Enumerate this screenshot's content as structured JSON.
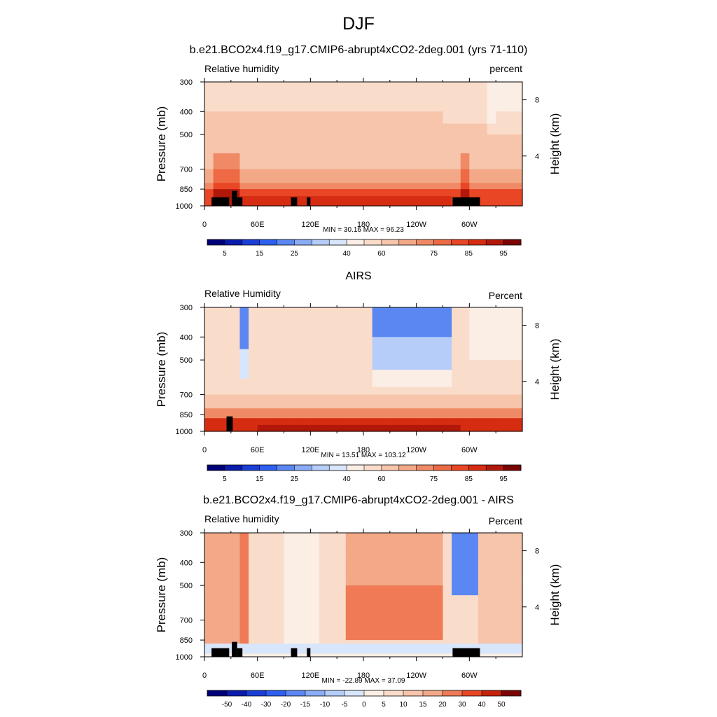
{
  "suptitle": "DJF",
  "chart_data": [
    {
      "type": "heatmap",
      "title": "b.e21.BCO2x4.f19_g17.CMIP6-abrupt4xCO2-2deg.001 (yrs 71-110)",
      "left_label": "Relative humidity",
      "right_label": "percent",
      "ylabel": "Pressure (mb)",
      "ylabel_right": "Height (km)",
      "yticks": [
        300,
        400,
        500,
        700,
        850,
        1000
      ],
      "yticks_right": [
        8,
        4
      ],
      "xticks": [
        "0",
        "60E",
        "120E",
        "180",
        "120W",
        "60W"
      ],
      "xlim": [
        0,
        360
      ],
      "ylim": [
        1000,
        300
      ],
      "min": "30.16",
      "max": "96.23",
      "stats": "MIN =  30.16  MAX =  96.23",
      "colorbar_levels": [
        0,
        5,
        10,
        15,
        20,
        25,
        30,
        35,
        40,
        50,
        60,
        65,
        70,
        75,
        80,
        85,
        90,
        95,
        100
      ],
      "colorbar_labels": [
        "5",
        "15",
        "25",
        "40",
        "60",
        "75",
        "85",
        "95"
      ],
      "colors": [
        "#00007a",
        "#0a1cab",
        "#1b3ed6",
        "#2d60f0",
        "#5b87f2",
        "#8aacf5",
        "#b5cdf8",
        "#d8e6fb",
        "#fbeee4",
        "#fadccb",
        "#f6c5ab",
        "#f3a988",
        "#f08a66",
        "#ed6a45",
        "#e84625",
        "#d52c12",
        "#b2180a",
        "#7a0403"
      ]
    },
    {
      "type": "heatmap",
      "title": "AIRS",
      "left_label": "Relative Humidity",
      "right_label": "Percent",
      "ylabel": "Pressure (mb)",
      "ylabel_right": "Height (km)",
      "yticks": [
        300,
        400,
        500,
        700,
        850,
        1000
      ],
      "yticks_right": [
        8,
        4
      ],
      "xticks": [
        "0",
        "60E",
        "120E",
        "180",
        "120W",
        "60W"
      ],
      "xlim": [
        0,
        360
      ],
      "ylim": [
        1000,
        300
      ],
      "min": "13.51",
      "max": "103.12",
      "stats": "MIN =  13.51  MAX = 103.12",
      "colorbar_levels": [
        0,
        5,
        10,
        15,
        20,
        25,
        30,
        35,
        40,
        50,
        60,
        65,
        70,
        75,
        80,
        85,
        90,
        95,
        100
      ],
      "colorbar_labels": [
        "5",
        "15",
        "25",
        "40",
        "60",
        "75",
        "85",
        "95"
      ],
      "colors": [
        "#00007a",
        "#0a1cab",
        "#1b3ed6",
        "#2d60f0",
        "#5b87f2",
        "#8aacf5",
        "#b5cdf8",
        "#d8e6fb",
        "#fbeee4",
        "#fadccb",
        "#f6c5ab",
        "#f3a988",
        "#f08a66",
        "#ed6a45",
        "#e84625",
        "#d52c12",
        "#b2180a",
        "#7a0403"
      ]
    },
    {
      "type": "heatmap",
      "title": "b.e21.BCO2x4.f19_g17.CMIP6-abrupt4xCO2-2deg.001 - AIRS",
      "left_label": "Relative humidity",
      "right_label": "Percent",
      "ylabel": "Pressure (mb)",
      "ylabel_right": "Height (km)",
      "yticks": [
        300,
        400,
        500,
        700,
        850,
        1000
      ],
      "yticks_right": [
        8,
        4
      ],
      "xticks": [
        "0",
        "60E",
        "120E",
        "180",
        "120W",
        "60W"
      ],
      "xlim": [
        0,
        360
      ],
      "ylim": [
        1000,
        300
      ],
      "min": "-22.89",
      "max": "37.09",
      "stats": "MIN = -22.89  MAX =  37.09",
      "colorbar_levels": [
        -60,
        -50,
        -40,
        -30,
        -20,
        -15,
        -10,
        -5,
        0,
        5,
        10,
        15,
        20,
        30,
        40,
        50,
        60
      ],
      "colorbar_labels": [
        "-50",
        "-40",
        "-30",
        "-20",
        "-15",
        "-10",
        "-5",
        "0",
        "5",
        "10",
        "15",
        "20",
        "30",
        "40",
        "50"
      ],
      "colors": [
        "#00007a",
        "#0a1cab",
        "#1b3ed6",
        "#2d60f0",
        "#5b87f2",
        "#8aacf5",
        "#b5cdf8",
        "#d8e6fb",
        "#fbeee4",
        "#fadccb",
        "#f6c5ab",
        "#f3a988",
        "#ef7a55",
        "#e84625",
        "#c5220b",
        "#7a0403"
      ]
    }
  ]
}
